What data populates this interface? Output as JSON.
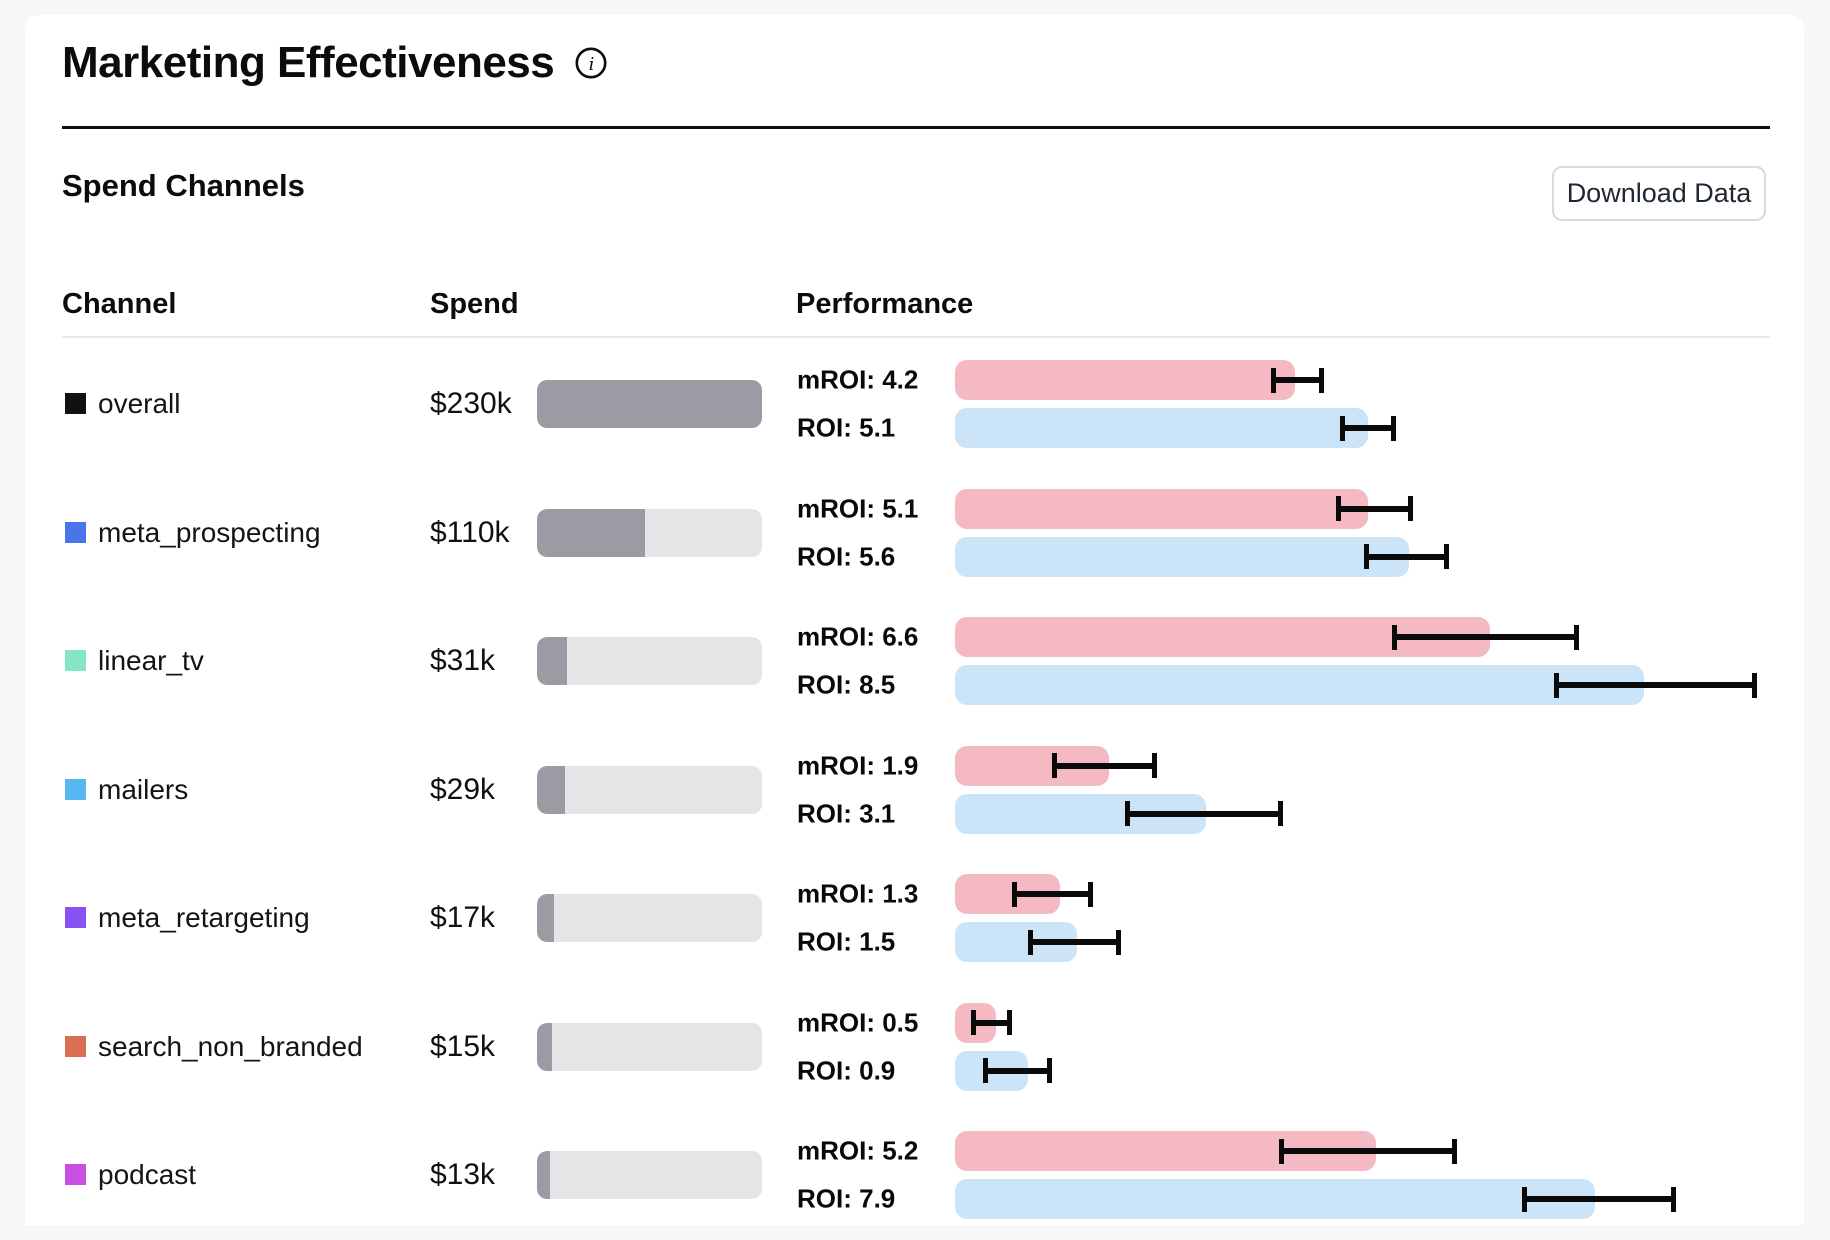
{
  "header": {
    "title": "Marketing Effectiveness",
    "info_icon": "info-circle"
  },
  "section": {
    "title": "Spend Channels",
    "download_button_label": "Download Data"
  },
  "columns": {
    "channel": "Channel",
    "spend": "Spend",
    "performance": "Performance"
  },
  "perf_prefixes": {
    "mroi": "mROI:",
    "roi": "ROI:"
  },
  "colors": {
    "mroi_bar": "#f4b9c2",
    "roi_bar": "#cbe4f7",
    "spend_fill": "#9b9ba4",
    "spend_track": "#e5e5e8",
    "error_bar": "#0a0a0a",
    "page_background": "#f7f7f8",
    "card_background": "#ffffff"
  },
  "chart_data": {
    "type": "bar",
    "title": "Spend Channels",
    "orientation": "horizontal",
    "series_legend": [
      "mROI",
      "ROI"
    ],
    "value_axis": {
      "min": 0,
      "max_visible": 10.4,
      "gridlines": false
    },
    "spend_axis_max_k": 230,
    "rows": [
      {
        "channel": "overall",
        "swatch_color": "#111113",
        "spend_k": 230,
        "spend_label": "$230k",
        "mroi": 4.2,
        "mroi_err": [
          3.9,
          4.55
        ],
        "roi": 5.1,
        "roi_err": [
          4.75,
          5.45
        ]
      },
      {
        "channel": "meta_prospecting",
        "swatch_color": "#4a75e8",
        "spend_k": 110,
        "spend_label": "$110k",
        "mroi": 5.1,
        "mroi_err": [
          4.7,
          5.65
        ],
        "roi": 5.6,
        "roi_err": [
          5.05,
          6.1
        ]
      },
      {
        "channel": "linear_tv",
        "swatch_color": "#85e6c6",
        "spend_k": 31,
        "spend_label": "$31k",
        "mroi": 6.6,
        "mroi_err": [
          5.4,
          7.7
        ],
        "roi": 8.5,
        "roi_err": [
          7.4,
          9.9
        ]
      },
      {
        "channel": "mailers",
        "swatch_color": "#57b7f2",
        "spend_k": 29,
        "spend_label": "$29k",
        "mroi": 1.9,
        "mroi_err": [
          1.2,
          2.5
        ],
        "roi": 3.1,
        "roi_err": [
          2.1,
          4.05
        ]
      },
      {
        "channel": "meta_retargeting",
        "swatch_color": "#8752f2",
        "spend_k": 17,
        "spend_label": "$17k",
        "mroi": 1.3,
        "mroi_err": [
          0.7,
          1.7
        ],
        "roi": 1.5,
        "roi_err": [
          0.9,
          2.05
        ]
      },
      {
        "channel": "search_non_branded",
        "swatch_color": "#d96f52",
        "spend_k": 15,
        "spend_label": "$15k",
        "mroi": 0.5,
        "mroi_err": [
          0.2,
          0.7
        ],
        "roi": 0.9,
        "roi_err": [
          0.35,
          1.2
        ]
      },
      {
        "channel": "podcast",
        "swatch_color": "#c94fe3",
        "spend_k": 13,
        "spend_label": "$13k",
        "mroi": 5.2,
        "mroi_err": [
          4.0,
          6.2
        ],
        "roi": 7.9,
        "roi_err": [
          7.0,
          8.9
        ]
      }
    ]
  }
}
